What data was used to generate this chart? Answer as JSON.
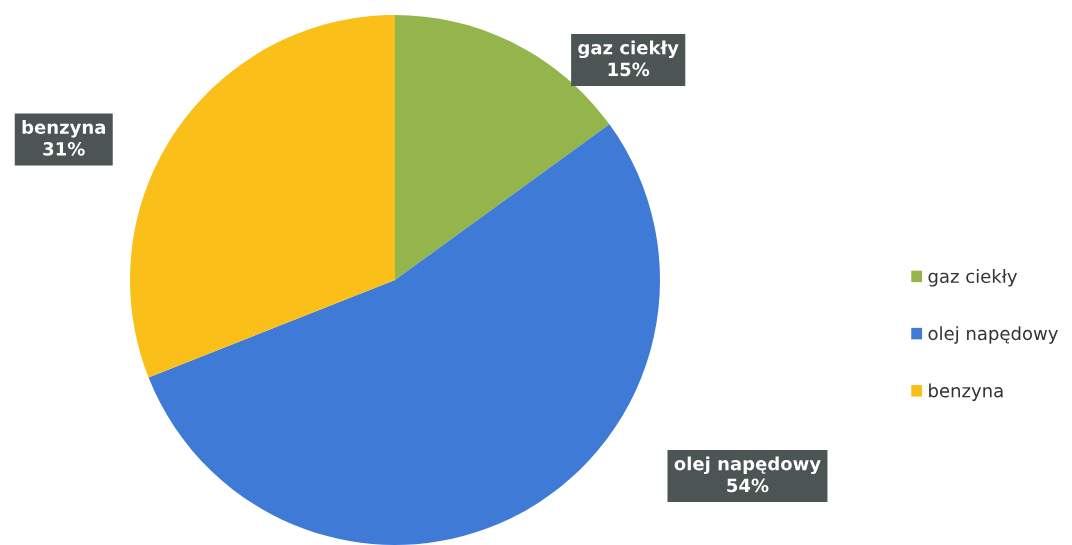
{
  "chart_data": {
    "type": "pie",
    "categories": [
      "gaz ciekły",
      "olej napędowy",
      "benzyna"
    ],
    "values": [
      15,
      54,
      31
    ],
    "colors": [
      "#94b54c",
      "#3f7bd6",
      "#fbbf1a"
    ],
    "value_labels": [
      "15%",
      "54%",
      "31%"
    ],
    "legend": "right"
  }
}
